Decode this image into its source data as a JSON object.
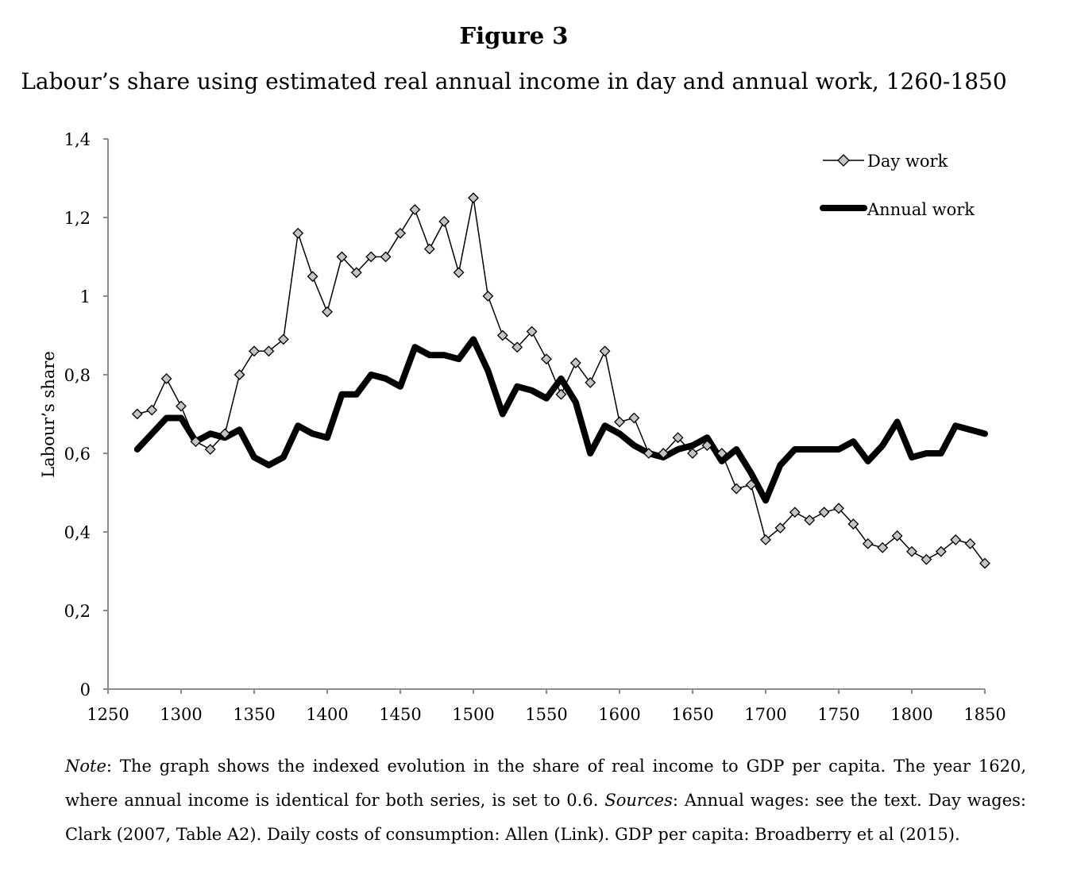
{
  "figure": {
    "title": "Figure 3",
    "subtitle": "Labour’s share using estimated real annual income in day and annual work, 1260-1850"
  },
  "chart_data": {
    "type": "line",
    "title": "Figure 3",
    "subtitle": "Labour’s share using estimated real annual income in day and annual work, 1260-1850",
    "xlabel": "",
    "ylabel": "Labour’s share",
    "xlim": [
      1250,
      1850
    ],
    "ylim": [
      0,
      1.4
    ],
    "xticks": [
      1250,
      1300,
      1350,
      1400,
      1450,
      1500,
      1550,
      1600,
      1650,
      1700,
      1750,
      1800,
      1850
    ],
    "xtick_labels": [
      "1250",
      "1300",
      "1350",
      "1400",
      "1450",
      "1500",
      "1550",
      "1600",
      "1650",
      "1700",
      "1750",
      "1800",
      "1850"
    ],
    "yticks": [
      0,
      0.2,
      0.4,
      0.6,
      0.8,
      1.0,
      1.2,
      1.4
    ],
    "ytick_labels": [
      "0",
      "0,2",
      "0,4",
      "0,6",
      "0,8",
      "1",
      "1,2",
      "1,4"
    ],
    "grid": false,
    "legend_position": "top-right",
    "series": [
      {
        "name": "Day work",
        "style": "thin line with grey diamond markers",
        "color": "#000000",
        "marker_fill": "#c4c4c4",
        "x": [
          1270,
          1280,
          1290,
          1300,
          1310,
          1320,
          1330,
          1340,
          1350,
          1360,
          1370,
          1380,
          1390,
          1400,
          1410,
          1420,
          1430,
          1440,
          1450,
          1460,
          1470,
          1480,
          1490,
          1500,
          1510,
          1520,
          1530,
          1540,
          1550,
          1560,
          1570,
          1580,
          1590,
          1600,
          1610,
          1620,
          1630,
          1640,
          1650,
          1660,
          1670,
          1680,
          1690,
          1700,
          1710,
          1720,
          1730,
          1740,
          1750,
          1760,
          1770,
          1780,
          1790,
          1800,
          1810,
          1820,
          1830,
          1840,
          1850
        ],
        "values": [
          0.7,
          0.71,
          0.79,
          0.72,
          0.63,
          0.61,
          0.65,
          0.8,
          0.86,
          0.86,
          0.89,
          1.16,
          1.05,
          0.96,
          1.1,
          1.06,
          1.1,
          1.1,
          1.16,
          1.22,
          1.12,
          1.19,
          1.06,
          1.25,
          1.0,
          0.9,
          0.87,
          0.91,
          0.84,
          0.75,
          0.83,
          0.78,
          0.86,
          0.68,
          0.69,
          0.6,
          0.6,
          0.64,
          0.6,
          0.62,
          0.6,
          0.51,
          0.52,
          0.38,
          0.41,
          0.45,
          0.43,
          0.45,
          0.46,
          0.42,
          0.37,
          0.36,
          0.39,
          0.35,
          0.33,
          0.35,
          0.38,
          0.37,
          0.32
        ]
      },
      {
        "name": "Annual work",
        "style": "thick line, no markers",
        "color": "#000000",
        "x": [
          1270,
          1280,
          1290,
          1300,
          1310,
          1320,
          1330,
          1340,
          1350,
          1360,
          1370,
          1380,
          1390,
          1400,
          1410,
          1420,
          1430,
          1440,
          1450,
          1460,
          1470,
          1480,
          1490,
          1500,
          1510,
          1520,
          1530,
          1540,
          1550,
          1560,
          1570,
          1580,
          1590,
          1600,
          1610,
          1620,
          1630,
          1640,
          1650,
          1660,
          1670,
          1680,
          1690,
          1700,
          1710,
          1720,
          1730,
          1740,
          1750,
          1760,
          1770,
          1780,
          1790,
          1800,
          1810,
          1820,
          1830,
          1840,
          1850
        ],
        "values": [
          0.61,
          0.65,
          0.69,
          0.69,
          0.63,
          0.65,
          0.64,
          0.66,
          0.59,
          0.57,
          0.59,
          0.67,
          0.65,
          0.64,
          0.75,
          0.75,
          0.8,
          0.79,
          0.77,
          0.87,
          0.85,
          0.85,
          0.84,
          0.89,
          0.81,
          0.7,
          0.77,
          0.76,
          0.74,
          0.79,
          0.73,
          0.6,
          0.67,
          0.65,
          0.62,
          0.6,
          0.59,
          0.61,
          0.62,
          0.64,
          0.58,
          0.61,
          0.55,
          0.48,
          0.57,
          0.61,
          0.61,
          0.61,
          0.61,
          0.63,
          0.58,
          0.62,
          0.68,
          0.59,
          0.6,
          0.6,
          0.67,
          0.66,
          0.65
        ]
      }
    ]
  },
  "note": {
    "label": "Note",
    "text1": ": The graph shows the indexed evolution in the share of real income to GDP per capita. The year 1620, where annual income is identical for both series, is set to 0.6. ",
    "sources_label": "Sources",
    "text2": ": Annual wages: see the text. Day wages: Clark (2007, Table A2). Daily costs of consumption: Allen (Link). GDP per capita: Broadberry et al (2015)."
  }
}
